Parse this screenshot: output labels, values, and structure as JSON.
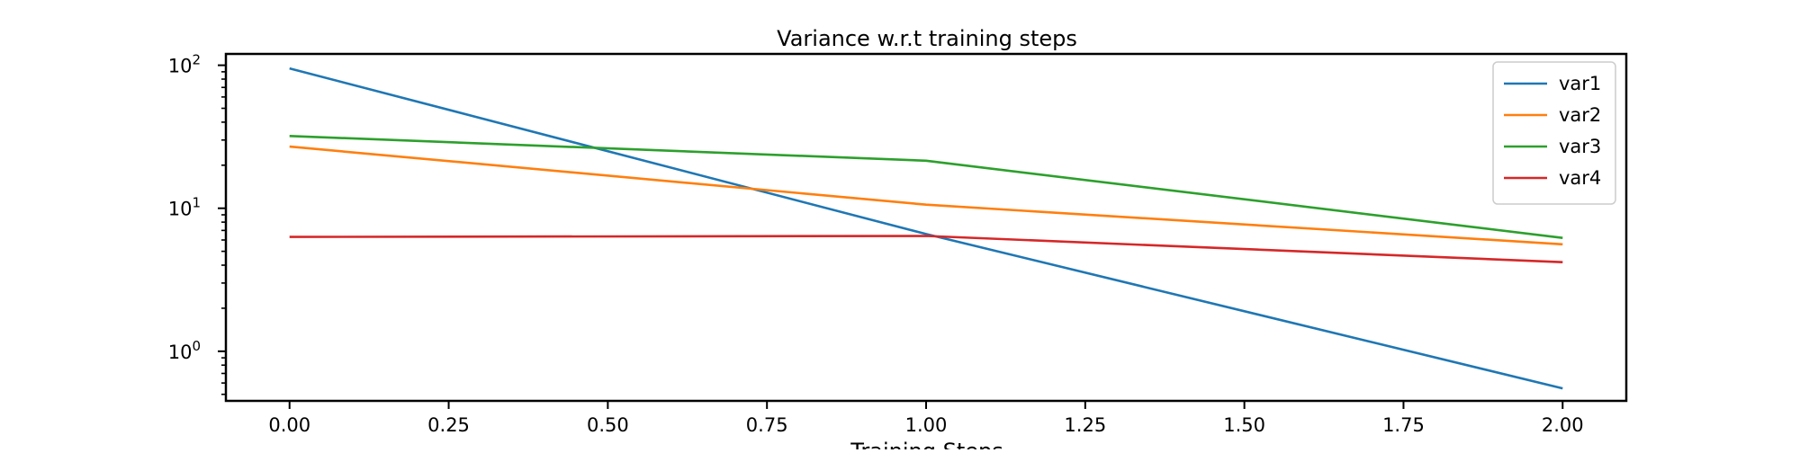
{
  "chart_data": {
    "type": "line",
    "title": "Variance w.r.t training steps",
    "xlabel": "Training Steps",
    "ylabel": "",
    "yscale": "log",
    "xlim": [
      -0.1,
      2.1
    ],
    "ylim": [
      0.45,
      120
    ],
    "x": [
      0.0,
      1.0,
      2.0
    ],
    "xticks": [
      0.0,
      0.25,
      0.5,
      0.75,
      1.0,
      1.25,
      1.5,
      1.75,
      2.0
    ],
    "xtick_labels": [
      "0.00",
      "0.25",
      "0.50",
      "0.75",
      "1.00",
      "1.25",
      "1.50",
      "1.75",
      "2.00"
    ],
    "yticks": [
      {
        "value": 1,
        "base": "10",
        "exp": "0"
      },
      {
        "value": 10,
        "base": "10",
        "exp": "1"
      },
      {
        "value": 100,
        "base": "10",
        "exp": "2"
      }
    ],
    "grid": false,
    "legend": "top-right",
    "series": [
      {
        "name": "var1",
        "color": "#1f77b4",
        "values": [
          95,
          6.6,
          0.55
        ]
      },
      {
        "name": "var2",
        "color": "#ff7f0e",
        "values": [
          27,
          10.6,
          5.6
        ]
      },
      {
        "name": "var3",
        "color": "#2ca02c",
        "values": [
          32,
          21.5,
          6.2
        ]
      },
      {
        "name": "var4",
        "color": "#d62728",
        "values": [
          6.3,
          6.4,
          4.2
        ]
      }
    ]
  }
}
